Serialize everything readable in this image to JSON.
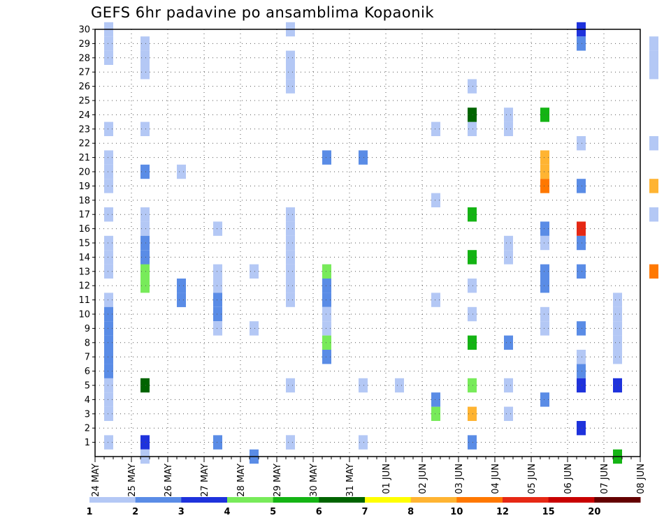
{
  "chart_data": {
    "type": "heatmap",
    "title": "GEFS 6hr padavine po ansamblima Kopaonik",
    "x_labels": [
      "24 MAY",
      "25 MAY",
      "26 MAY",
      "27 MAY",
      "28 MAY",
      "29 MAY",
      "30 MAY",
      "31 MAY",
      "01 JUN",
      "02 JUN",
      "03 JUN",
      "04 JUN",
      "05 JUN",
      "06 JUN",
      "07 JUN",
      "08 JUN"
    ],
    "x_slots_per_day": 4,
    "y_labels": [
      "1",
      "2",
      "3",
      "4",
      "5",
      "6",
      "7",
      "8",
      "9",
      "10",
      "11",
      "12",
      "13",
      "14",
      "15",
      "16",
      "17",
      "18",
      "19",
      "20",
      "21",
      "22",
      "23",
      "24",
      "25",
      "26",
      "27",
      "28",
      "29",
      "30"
    ],
    "ylim": [
      0,
      30
    ],
    "grid": true,
    "legend": {
      "position": "bottom",
      "labels": [
        "1",
        "2",
        "3",
        "4",
        "5",
        "6",
        "7",
        "8",
        "10",
        "12",
        "15",
        "20"
      ],
      "colors": [
        "#b4c8f5",
        "#5a8ce6",
        "#1e32dc",
        "#78eb5a",
        "#14b414",
        "#006400",
        "#ffff00",
        "#ffb432",
        "#ff7800",
        "#e62814",
        "#c80000",
        "#640000"
      ]
    },
    "cells": [
      [
        0,
        1,
        1
      ],
      [
        0,
        3,
        1
      ],
      [
        0,
        4,
        1
      ],
      [
        0,
        5,
        1
      ],
      [
        0,
        6,
        1
      ],
      [
        0,
        7,
        1
      ],
      [
        0,
        10,
        1
      ],
      [
        0,
        11,
        1
      ],
      [
        0,
        13,
        1
      ],
      [
        0,
        14,
        1
      ],
      [
        0,
        15,
        1
      ],
      [
        0,
        17,
        1
      ],
      [
        0,
        19,
        1
      ],
      [
        0,
        20,
        1
      ],
      [
        0,
        21,
        1
      ],
      [
        0,
        23,
        1
      ],
      [
        0,
        28,
        1
      ],
      [
        0,
        29,
        1
      ],
      [
        0,
        30,
        1
      ],
      [
        0,
        7,
        2
      ],
      [
        0,
        8,
        2
      ],
      [
        0,
        9,
        2
      ],
      [
        0,
        10,
        2
      ],
      [
        0,
        6,
        2
      ],
      [
        1,
        1,
        3
      ],
      [
        1,
        13,
        2
      ],
      [
        1,
        29,
        1
      ],
      [
        1,
        27,
        1
      ],
      [
        1,
        28,
        1
      ],
      [
        1,
        23,
        1
      ],
      [
        1,
        20,
        2
      ],
      [
        1,
        16,
        1
      ],
      [
        1,
        17,
        1
      ],
      [
        1,
        15,
        2
      ],
      [
        1,
        14,
        2
      ],
      [
        1,
        13,
        4
      ],
      [
        1,
        12,
        4
      ],
      [
        1,
        5,
        6
      ],
      [
        1,
        0,
        1
      ],
      [
        2,
        12,
        2
      ],
      [
        2,
        11,
        2
      ],
      [
        2,
        20,
        1
      ],
      [
        2,
        11,
        2
      ],
      [
        3,
        1,
        2
      ],
      [
        3,
        13,
        1
      ],
      [
        3,
        12,
        1
      ],
      [
        3,
        11,
        2
      ],
      [
        3,
        10,
        2
      ],
      [
        3,
        9,
        1
      ],
      [
        3,
        16,
        1
      ],
      [
        4,
        13,
        1
      ],
      [
        4,
        0,
        2
      ],
      [
        4,
        9,
        1
      ],
      [
        5,
        1,
        1
      ],
      [
        5,
        5,
        1
      ],
      [
        5,
        11,
        1
      ],
      [
        5,
        12,
        1
      ],
      [
        5,
        13,
        1
      ],
      [
        5,
        14,
        1
      ],
      [
        5,
        15,
        1
      ],
      [
        5,
        16,
        1
      ],
      [
        5,
        17,
        1
      ],
      [
        5,
        26,
        1
      ],
      [
        5,
        27,
        1
      ],
      [
        5,
        28,
        1
      ],
      [
        5,
        30,
        1
      ],
      [
        5,
        1,
        1
      ],
      [
        6,
        13,
        1
      ],
      [
        6,
        12,
        2
      ],
      [
        6,
        11,
        2
      ],
      [
        6,
        10,
        1
      ],
      [
        6,
        9,
        1
      ],
      [
        6,
        8,
        4
      ],
      [
        6,
        7,
        2
      ],
      [
        6,
        21,
        2
      ],
      [
        6,
        13,
        4
      ],
      [
        7,
        21,
        2
      ],
      [
        7,
        5,
        1
      ],
      [
        7,
        1,
        1
      ],
      [
        8,
        5,
        1
      ],
      [
        9,
        23,
        1
      ],
      [
        9,
        3,
        4
      ],
      [
        9,
        4,
        2
      ],
      [
        9,
        18,
        1
      ],
      [
        9,
        11,
        1
      ],
      [
        10,
        23,
        1
      ],
      [
        10,
        26,
        1
      ],
      [
        10,
        1,
        2
      ],
      [
        10,
        3,
        8
      ],
      [
        10,
        5,
        4
      ],
      [
        10,
        8,
        5
      ],
      [
        10,
        14,
        5
      ],
      [
        10,
        17,
        5
      ],
      [
        10,
        24,
        6
      ],
      [
        10,
        12,
        1
      ],
      [
        10,
        10,
        1
      ],
      [
        11,
        8,
        2
      ],
      [
        11,
        3,
        1
      ],
      [
        11,
        5,
        1
      ],
      [
        11,
        15,
        1
      ],
      [
        11,
        24,
        1
      ],
      [
        11,
        23,
        1
      ],
      [
        11,
        14,
        1
      ],
      [
        12,
        24,
        5
      ],
      [
        12,
        15,
        1
      ],
      [
        12,
        16,
        2
      ],
      [
        12,
        20,
        8
      ],
      [
        12,
        19,
        9
      ],
      [
        12,
        13,
        2
      ],
      [
        12,
        12,
        2
      ],
      [
        12,
        10,
        1
      ],
      [
        12,
        9,
        1
      ],
      [
        12,
        4,
        2
      ],
      [
        12,
        21,
        8
      ],
      [
        13,
        15,
        2
      ],
      [
        13,
        16,
        10
      ],
      [
        13,
        19,
        2
      ],
      [
        13,
        29,
        2
      ],
      [
        13,
        30,
        3
      ],
      [
        13,
        22,
        1
      ],
      [
        13,
        6,
        2
      ],
      [
        13,
        5,
        3
      ],
      [
        13,
        7,
        1
      ],
      [
        13,
        9,
        2
      ],
      [
        13,
        13,
        2
      ],
      [
        13,
        2,
        3
      ],
      [
        14,
        5,
        3
      ],
      [
        14,
        0,
        5
      ],
      [
        14,
        9,
        1
      ],
      [
        14,
        8,
        1
      ],
      [
        14,
        7,
        1
      ],
      [
        14,
        10,
        1
      ],
      [
        14,
        11,
        1
      ],
      [
        15,
        13,
        9
      ],
      [
        15,
        19,
        8
      ],
      [
        15,
        28,
        1
      ],
      [
        15,
        27,
        1
      ],
      [
        15,
        29,
        1
      ],
      [
        15,
        22,
        1
      ],
      [
        15,
        17,
        1
      ]
    ]
  }
}
